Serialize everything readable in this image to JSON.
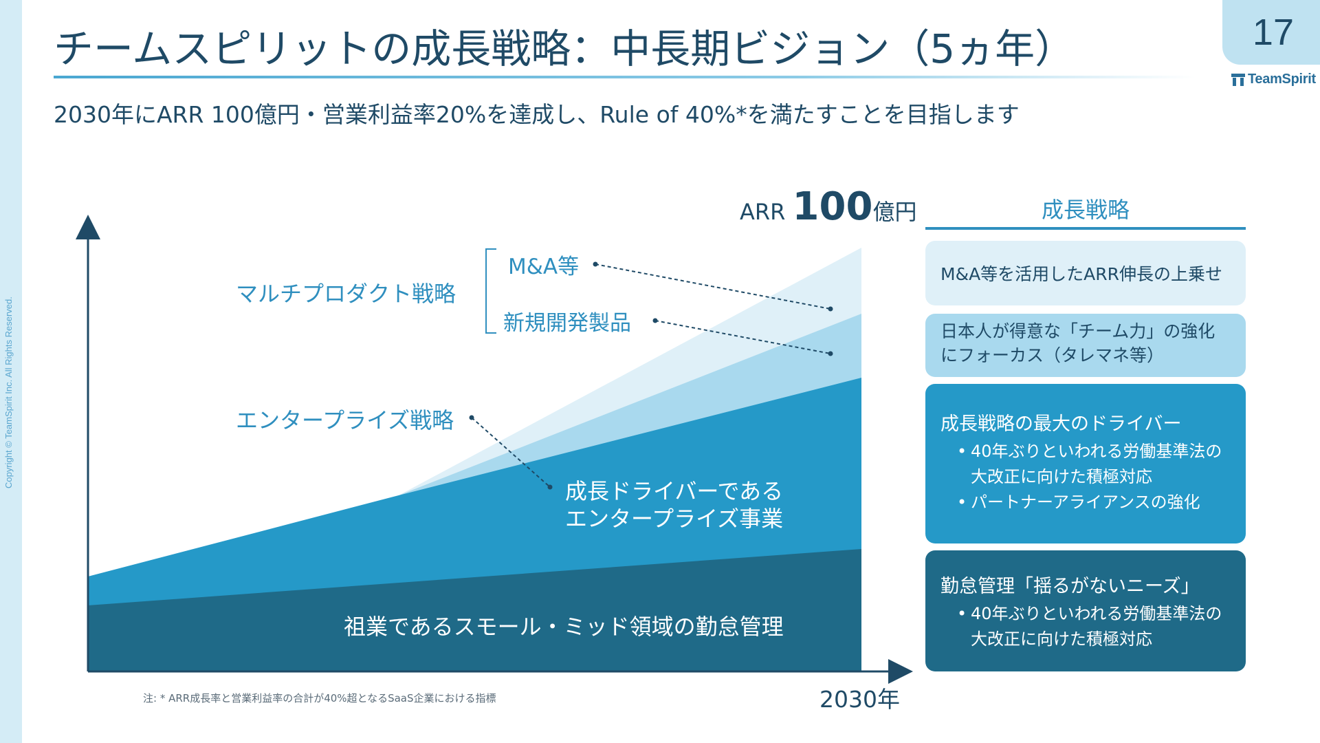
{
  "slide": {
    "title": "チームスピリットの成長戦略：中長期ビジョン（5ヵ年）",
    "page_number": "17",
    "subtitle": "2030年にARR 100億円・営業利益率20%を達成し、Rule of 40%*を満たすことを目指します",
    "copyright": "Copyright © TeamSpirit Inc. All Rights Reserved.",
    "logo_text": "TeamSpirit",
    "footnote": "注: * ARR成長率と営業利益率の合計が40%超となるSaaS企業における指標"
  },
  "chart": {
    "arr_prefix": "ARR ",
    "arr_value": "100",
    "arr_unit": "億円",
    "x_label": "2030年",
    "multiproduct_label": "マルチプロダクト戦略",
    "ma_label": "M&A等",
    "new_product_label": "新規開発製品",
    "enterprise_strategy_label": "エンタープライズ戦略",
    "enterprise_business_line1": "成長ドライバーである",
    "enterprise_business_line2": "エンタープライズ事業",
    "base_business_label": "祖業であるスモール・ミッド領域の勤怠管理",
    "colors": {
      "base": "#1f6a88",
      "enterprise": "#2599c8",
      "new_product": "#a9d9ee",
      "ma": "#dff0f8",
      "axis": "#1f4a66"
    }
  },
  "strategy_panel": {
    "title": "成長戦略",
    "cards": [
      {
        "text": "M&A等を活用したARR伸長の上乗せ"
      },
      {
        "line1": "日本人が得意な「チーム力」の強化",
        "line2": "にフォーカス（タレマネ等）"
      },
      {
        "heading": "成長戦略の最大のドライバー",
        "bullets": [
          {
            "line1": "40年ぶりといわれる労働基準法の",
            "line2": "大改正に向けた積極対応"
          },
          {
            "line1": "パートナーアライアンスの強化",
            "line2": ""
          }
        ]
      },
      {
        "heading": "勤怠管理「揺るがないニーズ」",
        "bullets": [
          {
            "line1": "40年ぶりといわれる労働基準法の",
            "line2": "大改正に向けた積極対応"
          }
        ]
      }
    ]
  }
}
